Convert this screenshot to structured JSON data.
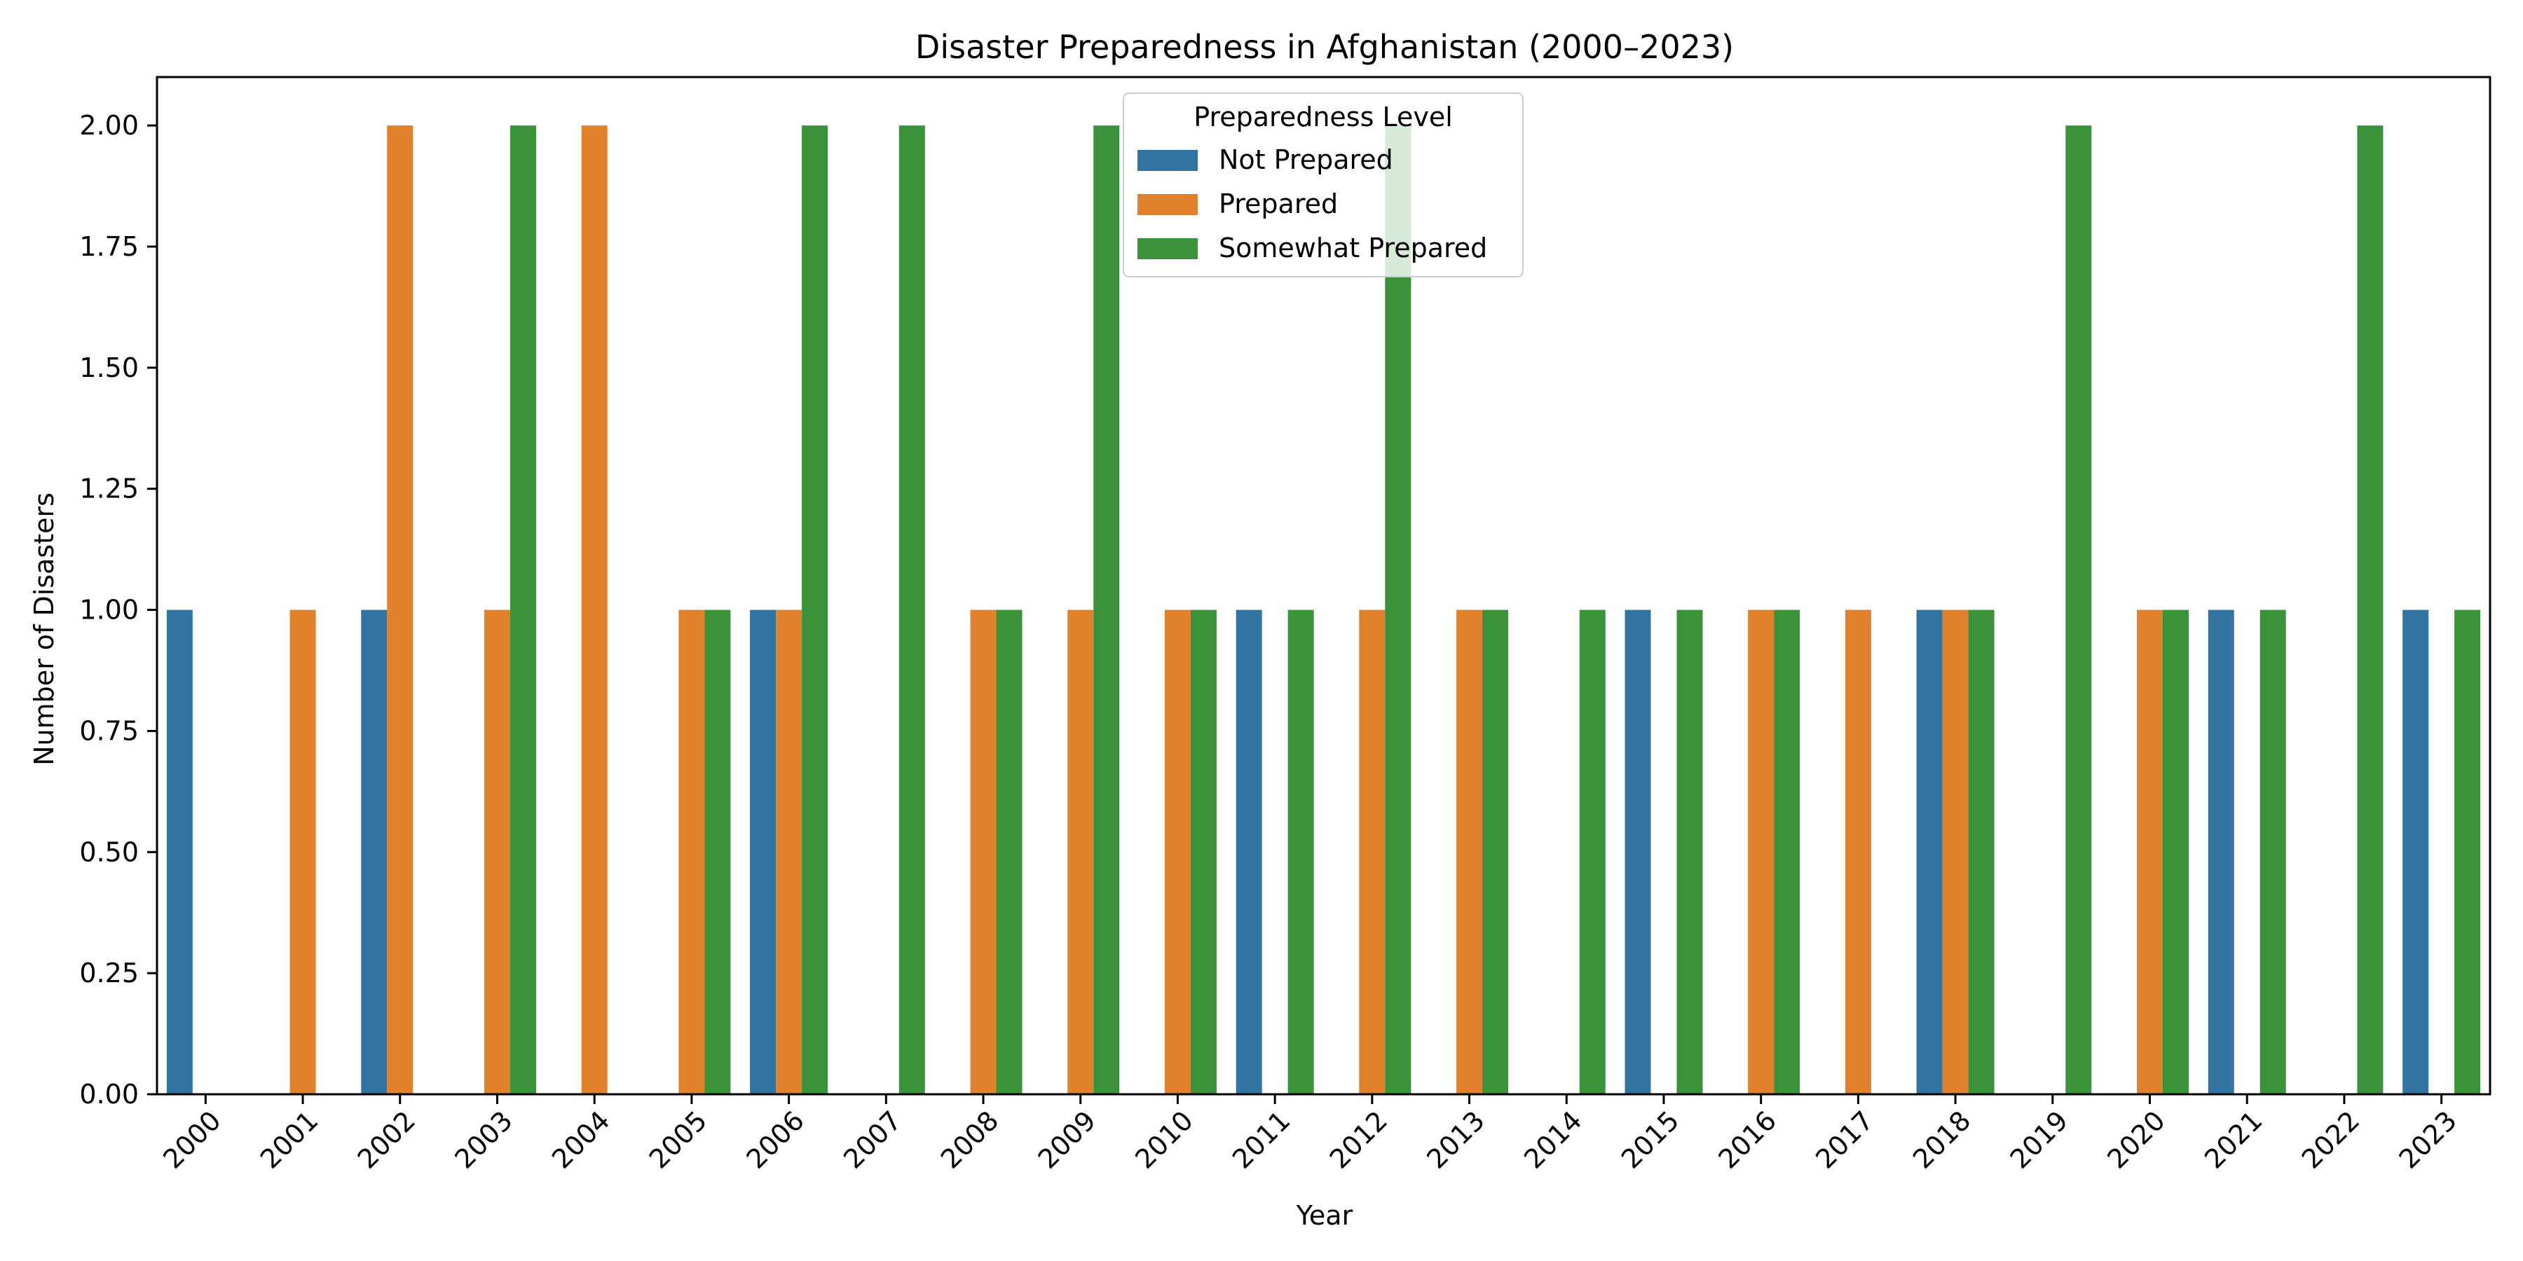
{
  "chart_data": {
    "type": "bar",
    "title": "Disaster Preparedness in Afghanistan (2000–2023)",
    "xlabel": "Year",
    "ylabel": "Number of Disasters",
    "ylim": [
      0,
      2.1
    ],
    "yticks": [
      "0.00",
      "0.25",
      "0.50",
      "0.75",
      "1.00",
      "1.25",
      "1.50",
      "1.75",
      "2.00"
    ],
    "grid": false,
    "legend": {
      "title": "Preparedness Level",
      "placement": "top-center"
    },
    "categories": [
      "2000",
      "2001",
      "2002",
      "2003",
      "2004",
      "2005",
      "2006",
      "2007",
      "2008",
      "2009",
      "2010",
      "2011",
      "2012",
      "2013",
      "2014",
      "2015",
      "2016",
      "2017",
      "2018",
      "2019",
      "2020",
      "2021",
      "2022",
      "2023"
    ],
    "series": [
      {
        "name": "Not Prepared",
        "color": "#3274a1",
        "values": [
          1,
          0,
          1,
          0,
          0,
          0,
          1,
          0,
          0,
          0,
          0,
          1,
          0,
          0,
          0,
          1,
          0,
          0,
          1,
          0,
          0,
          1,
          0,
          1
        ]
      },
      {
        "name": "Prepared",
        "color": "#e1812c",
        "values": [
          0,
          1,
          2,
          1,
          2,
          1,
          1,
          0,
          1,
          1,
          1,
          0,
          1,
          1,
          0,
          0,
          1,
          1,
          1,
          0,
          1,
          0,
          0,
          0
        ]
      },
      {
        "name": "Somewhat Prepared",
        "color": "#3a923a",
        "values": [
          0,
          0,
          0,
          2,
          0,
          1,
          2,
          2,
          1,
          2,
          1,
          1,
          2,
          1,
          1,
          1,
          1,
          0,
          1,
          2,
          1,
          1,
          2,
          1
        ]
      }
    ]
  }
}
